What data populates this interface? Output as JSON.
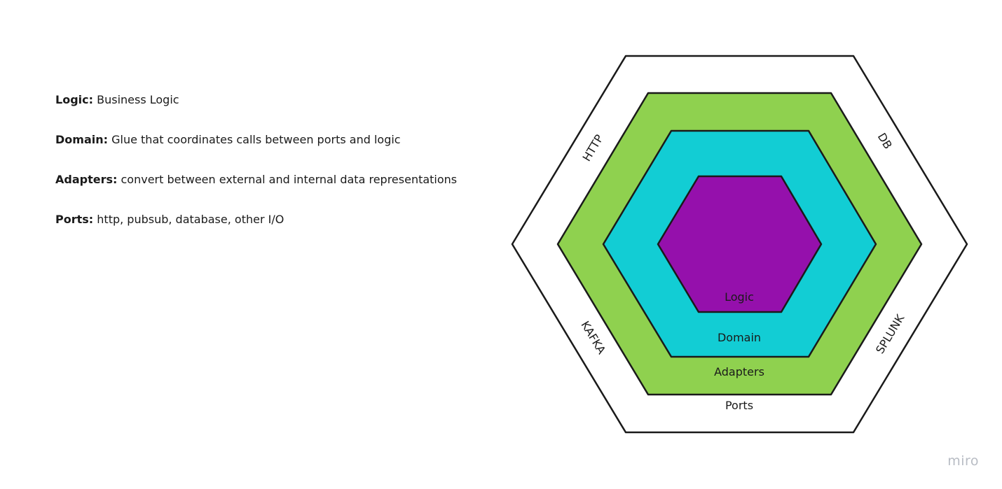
{
  "legend": {
    "items": [
      {
        "term": "Logic:",
        "description": "Business Logic"
      },
      {
        "term": "Domain:",
        "description": "Glue that coordinates calls between ports and logic"
      },
      {
        "term": "Adapters:",
        "description": "convert between external and internal data representations"
      },
      {
        "term": "Ports:",
        "description": "http, pubsub, database, other I/O"
      }
    ]
  },
  "diagram": {
    "layers": [
      {
        "label": "Ports",
        "fill": "#ffffff"
      },
      {
        "label": "Adapters",
        "fill": "#8fd14f"
      },
      {
        "label": "Domain",
        "fill": "#12cdd4"
      },
      {
        "label": "Logic",
        "fill": "#9510ac"
      }
    ],
    "port_labels": {
      "top_left": "HTTP",
      "top_right": "DB",
      "bottom_left": "KAFKA",
      "bottom_right": "SPLUNK"
    },
    "stroke": "#1a1a1a"
  },
  "watermark": "miro"
}
